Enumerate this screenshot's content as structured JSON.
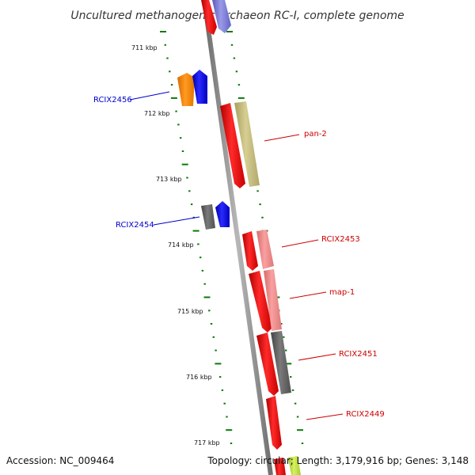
{
  "title": "Uncultured methanogenic archaeon RC-I, complete genome",
  "footer": {
    "accession": "Accession: NC_009464",
    "summary": "Topology: circular; Length: 3,179,916 bp; Genes: 3,148"
  },
  "ticks": [
    "711 kbp",
    "712 kbp",
    "713 kbp",
    "714 kbp",
    "715 kbp",
    "716 kbp",
    "717 kbp"
  ],
  "gene_labels": {
    "rcix2456": "RCIX2456",
    "pan2": "pan-2",
    "rcix2454": "RCIX2454",
    "rcix2453": "RCIX2453",
    "map1": "map-1",
    "rcix2451": "RCIX2451",
    "rcix2449": "RCIX2449"
  },
  "colors": {
    "backbone": "#8a8a8a",
    "tick_green": "#0a7a0a",
    "label_blue": "#0000cc",
    "label_red": "#cc0000",
    "gene_red": "#ff0000",
    "gene_blue": "#0000ff",
    "gene_orange": "#ff8800",
    "gene_olive": "#c8c080",
    "gene_pink": "#f08888",
    "gene_gray": "#666666",
    "gene_purple": "#7a7ad6"
  }
}
